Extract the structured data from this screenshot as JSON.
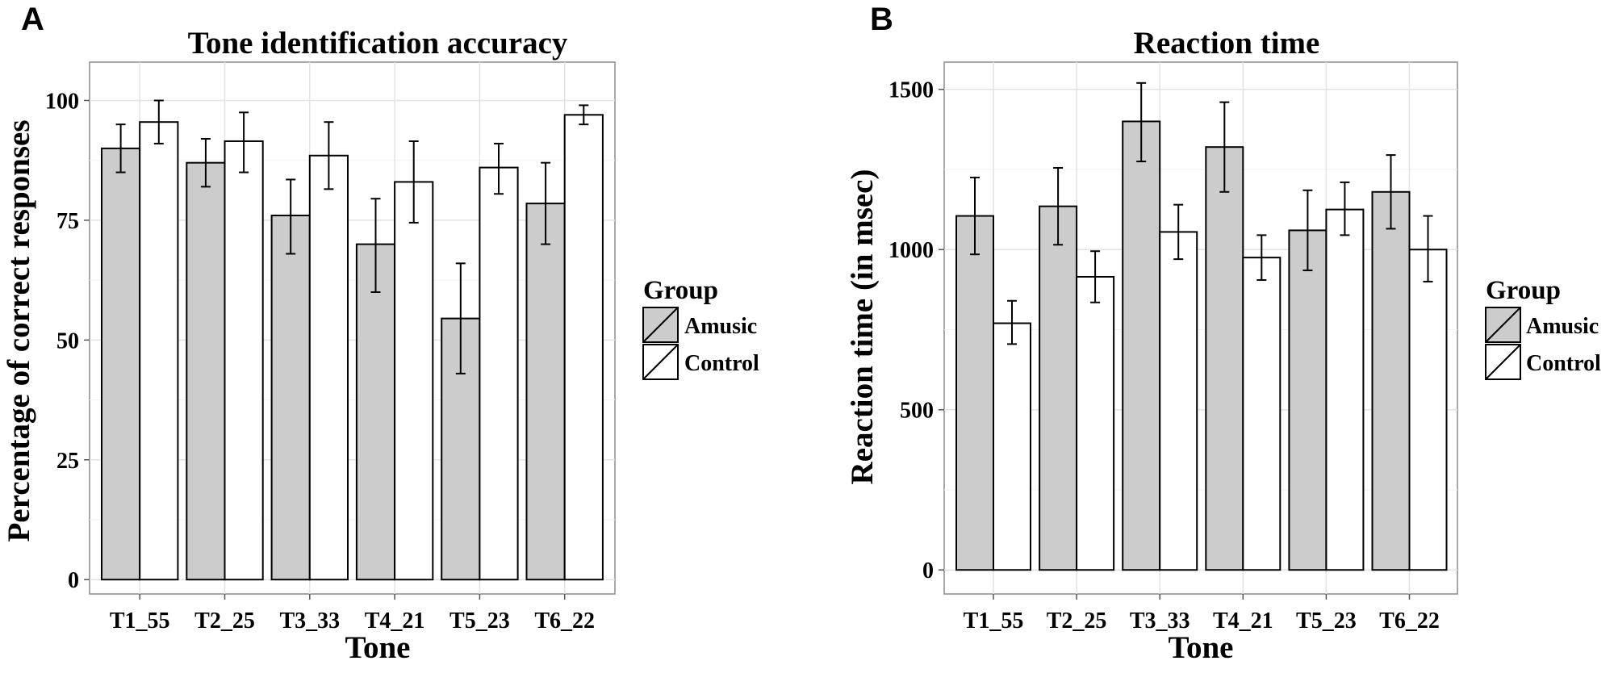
{
  "chart_data": [
    {
      "panel": "A",
      "type": "bar",
      "title": "Tone identification accuracy",
      "xlabel": "Tone",
      "ylabel": "Percentage of correct responses",
      "categories": [
        "T1_55",
        "T2_25",
        "T3_33",
        "T4_21",
        "T5_23",
        "T6_22"
      ],
      "ylim": [
        -3,
        108
      ],
      "yticks": [
        0,
        25,
        50,
        75,
        100
      ],
      "grid": true,
      "legend": {
        "title": "Group",
        "position": "right"
      },
      "series": [
        {
          "name": "Amusic",
          "color": "#cccccc",
          "values": [
            90,
            87,
            76,
            70,
            54.5,
            78.5
          ],
          "err_low": [
            85,
            82,
            68,
            60,
            43,
            70
          ],
          "err_high": [
            95,
            92,
            83.5,
            79.5,
            66,
            87
          ]
        },
        {
          "name": "Control",
          "color": "#ffffff",
          "values": [
            95.5,
            91.5,
            88.5,
            83,
            86,
            97
          ],
          "err_low": [
            91,
            85,
            81.5,
            74.5,
            80.5,
            95
          ],
          "err_high": [
            100,
            97.5,
            95.5,
            91.5,
            91,
            99
          ]
        }
      ]
    },
    {
      "panel": "B",
      "type": "bar",
      "title": "Reaction time",
      "xlabel": "Tone",
      "ylabel": "Reaction time (in msec)",
      "categories": [
        "T1_55",
        "T2_25",
        "T3_33",
        "T4_21",
        "T5_23",
        "T6_22"
      ],
      "ylim": [
        -75,
        1585
      ],
      "yticks": [
        0,
        500,
        1000,
        1500
      ],
      "grid": true,
      "legend": {
        "title": "Group",
        "position": "right"
      },
      "series": [
        {
          "name": "Amusic",
          "color": "#cccccc",
          "values": [
            1105,
            1135,
            1400,
            1320,
            1060,
            1180
          ],
          "err_low": [
            985,
            1015,
            1275,
            1180,
            935,
            1065
          ],
          "err_high": [
            1225,
            1255,
            1520,
            1460,
            1185,
            1295
          ]
        },
        {
          "name": "Control",
          "color": "#ffffff",
          "values": [
            770,
            915,
            1055,
            975,
            1125,
            1000
          ],
          "err_low": [
            705,
            835,
            970,
            905,
            1045,
            900
          ],
          "err_high": [
            840,
            995,
            1140,
            1045,
            1210,
            1105
          ]
        }
      ]
    }
  ]
}
